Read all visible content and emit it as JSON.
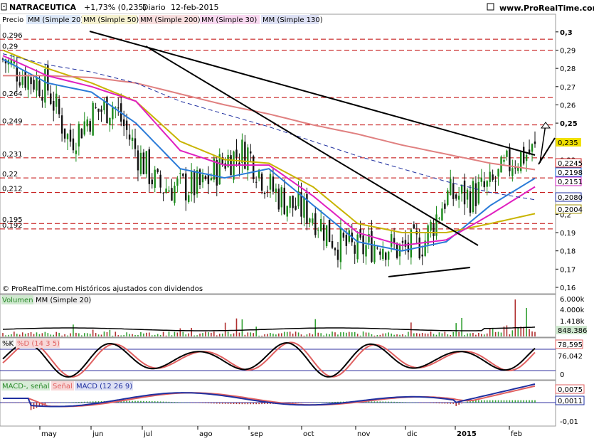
{
  "header": {
    "symbol": "NATRACEUTICA",
    "change": "+1,73% (0,235)",
    "period": "Diario",
    "date": "12-feb-2015",
    "site": "www.ProRealTime.com"
  },
  "price_panel": {
    "label": "Precio",
    "legend": [
      {
        "text": "MM (Simple 20)",
        "color": "#2a7bd8"
      },
      {
        "text": "MM (Simple 50)",
        "color": "#c8b400"
      },
      {
        "text": "MM (Simple 200)",
        "color": "#e08080"
      },
      {
        "text": "MM (Simple 30)",
        "color": "#e020c0"
      },
      {
        "text": "MM (Simple 130)",
        "color": "#2030a0"
      }
    ],
    "footer": "© ProRealTime.com Históricos ajustados con dividendos",
    "y_ticks": [
      "0,3",
      "0,29",
      "0,28",
      "0,27",
      "0,26",
      "0,25",
      "0,24",
      "0,23",
      "0,22",
      "0,21",
      "0,2",
      "0,19",
      "0,18",
      "0,17",
      "0,16"
    ],
    "left_levels": [
      "0,296",
      "0,29",
      "0,264",
      "0,249",
      "0,231",
      "0,22",
      "0,212",
      "0,195",
      "0,192"
    ],
    "right_values": [
      {
        "text": "0,235",
        "color": "#000000",
        "bg": "#f0e000"
      },
      {
        "text": "0,2245",
        "color": "#d02020",
        "bg": "#ffffff"
      },
      {
        "text": "0,2198",
        "color": "#1060d0",
        "bg": "#ffffff"
      },
      {
        "text": "0,2151",
        "color": "#d020c0",
        "bg": "#ffffff"
      },
      {
        "text": "0,2080",
        "color": "#2030a0",
        "bg": "#ffffff"
      },
      {
        "text": "0,2004",
        "color": "#a09000",
        "bg": "#ffffff"
      }
    ]
  },
  "volume_panel": {
    "label": "Volumen",
    "legend": "MM (Simple 20)",
    "y_ticks": [
      "6.000k",
      "4.000k",
      "1.418k"
    ],
    "value": "848.386"
  },
  "stoch_panel": {
    "label_k": "%K",
    "label_d": "%D (14 3 5)",
    "ticks": [
      "0"
    ],
    "values": [
      "78,595",
      "76,042"
    ]
  },
  "macd_panel": {
    "labels": [
      "MACD-, señal",
      "Señal",
      "MACD (12 26 9)"
    ],
    "ticks": [
      "-0,01"
    ],
    "values": [
      "0,0075",
      "0,0011"
    ]
  },
  "x_labels": [
    "may",
    "jun",
    "jul",
    "ago",
    "sep",
    "oct",
    "nov",
    "dic",
    "2015",
    "feb"
  ],
  "colors": {
    "up": "#1a8a1a",
    "down": "#111111",
    "ma20": "#2a7bd8",
    "ma50": "#c8b400",
    "ma200": "#e08080",
    "ma30": "#e020c0",
    "ma130": "#2030a0",
    "dash_red": "#c00000"
  },
  "chart_data": {
    "type": "candlestick",
    "title": "NATRACEUTICA",
    "ylim": [
      0.16,
      0.305
    ],
    "x_categories": [
      "may",
      "jun",
      "jul",
      "ago",
      "sep",
      "oct",
      "nov",
      "dic",
      "2015",
      "feb"
    ],
    "levels": [
      0.296,
      0.29,
      0.264,
      0.249,
      0.231,
      0.22,
      0.212,
      0.195,
      0.192
    ],
    "series": [
      {
        "name": "Precio",
        "values": [
          [
            0,
            0.285
          ],
          [
            0.5,
            0.276
          ],
          [
            1,
            0.27
          ],
          [
            1.5,
            0.24
          ],
          [
            2,
            0.255
          ],
          [
            2.5,
            0.26
          ],
          [
            3,
            0.235
          ],
          [
            3.5,
            0.215
          ],
          [
            4,
            0.215
          ],
          [
            4.5,
            0.215
          ],
          [
            5,
            0.23
          ],
          [
            5.5,
            0.235
          ],
          [
            6,
            0.215
          ],
          [
            6.5,
            0.205
          ],
          [
            7,
            0.2
          ],
          [
            7.5,
            0.185
          ],
          [
            8,
            0.18
          ],
          [
            8.5,
            0.185
          ],
          [
            9,
            0.18
          ],
          [
            9.5,
            0.185
          ],
          [
            10,
            0.21
          ],
          [
            10.5,
            0.21
          ],
          [
            11,
            0.215
          ],
          [
            11.5,
            0.23
          ],
          [
            12,
            0.235
          ]
        ]
      },
      {
        "name": "MM (Simple 20)",
        "values": [
          [
            0,
            0.285
          ],
          [
            1,
            0.272
          ],
          [
            2,
            0.267
          ],
          [
            3,
            0.25
          ],
          [
            4,
            0.225
          ],
          [
            5,
            0.22
          ],
          [
            6,
            0.225
          ],
          [
            7,
            0.205
          ],
          [
            8,
            0.185
          ],
          [
            9,
            0.18
          ],
          [
            10,
            0.185
          ],
          [
            11,
            0.205
          ],
          [
            12,
            0.2198
          ]
        ]
      },
      {
        "name": "MM (Simple 50)",
        "values": [
          [
            0,
            0.29
          ],
          [
            1,
            0.28
          ],
          [
            2,
            0.272
          ],
          [
            3,
            0.262
          ],
          [
            4,
            0.24
          ],
          [
            5,
            0.23
          ],
          [
            6,
            0.228
          ],
          [
            7,
            0.215
          ],
          [
            8,
            0.195
          ],
          [
            9,
            0.19
          ],
          [
            10,
            0.19
          ],
          [
            11,
            0.195
          ],
          [
            12,
            0.2004
          ]
        ]
      },
      {
        "name": "MM (Simple 200)",
        "values": [
          [
            0,
            0.276
          ],
          [
            1,
            0.276
          ],
          [
            2,
            0.275
          ],
          [
            3,
            0.272
          ],
          [
            4,
            0.266
          ],
          [
            5,
            0.26
          ],
          [
            6,
            0.255
          ],
          [
            7,
            0.249
          ],
          [
            8,
            0.244
          ],
          [
            9,
            0.238
          ],
          [
            10,
            0.233
          ],
          [
            11,
            0.228
          ],
          [
            12,
            0.2245
          ]
        ]
      },
      {
        "name": "MM (Simple 30)",
        "values": [
          [
            0,
            0.287
          ],
          [
            1,
            0.276
          ],
          [
            2,
            0.27
          ],
          [
            3,
            0.262
          ],
          [
            4,
            0.235
          ],
          [
            5,
            0.227
          ],
          [
            6,
            0.227
          ],
          [
            7,
            0.21
          ],
          [
            8,
            0.19
          ],
          [
            9,
            0.183
          ],
          [
            10,
            0.186
          ],
          [
            11,
            0.2
          ],
          [
            12,
            0.2151
          ]
        ]
      },
      {
        "name": "MM (Simple 130)",
        "values": [
          [
            0,
            0.288
          ],
          [
            1,
            0.282
          ],
          [
            2,
            0.278
          ],
          [
            3,
            0.272
          ],
          [
            4,
            0.262
          ],
          [
            5,
            0.255
          ],
          [
            6,
            0.248
          ],
          [
            7,
            0.24
          ],
          [
            8,
            0.232
          ],
          [
            9,
            0.225
          ],
          [
            10,
            0.218
          ],
          [
            11,
            0.212
          ],
          [
            12,
            0.208
          ]
        ]
      }
    ]
  }
}
